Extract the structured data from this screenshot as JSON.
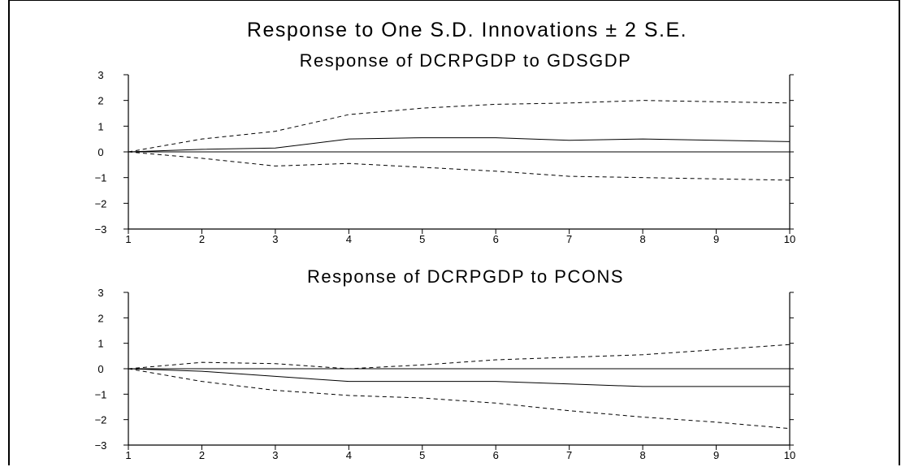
{
  "figure": {
    "title": "Response to One S.D. Innovations ± 2 S.E."
  },
  "colors": {
    "background": "#ffffff",
    "line": "#000000"
  },
  "chart_data": [
    {
      "type": "line",
      "title": "Response of DCRPGDP to GDSGDP",
      "xlabel": "",
      "ylabel": "",
      "x": [
        1,
        2,
        3,
        4,
        5,
        6,
        7,
        8,
        9,
        10
      ],
      "xlim": [
        1,
        10
      ],
      "ylim": [
        -3,
        3
      ],
      "yticks": [
        -3,
        -2,
        -1,
        0,
        1,
        2,
        3
      ],
      "xticks": [
        1,
        2,
        3,
        4,
        5,
        6,
        7,
        8,
        9,
        10
      ],
      "grid": false,
      "legend": "none",
      "zero_line": true,
      "series": [
        {
          "style": "solid",
          "values": [
            0.0,
            0.1,
            0.15,
            0.5,
            0.55,
            0.55,
            0.45,
            0.5,
            0.45,
            0.4
          ]
        },
        {
          "style": "dashed",
          "values": [
            0.0,
            0.5,
            0.8,
            1.45,
            1.7,
            1.85,
            1.9,
            2.0,
            1.95,
            1.9
          ]
        },
        {
          "style": "dashed",
          "values": [
            0.0,
            -0.25,
            -0.55,
            -0.45,
            -0.6,
            -0.75,
            -0.95,
            -1.0,
            -1.05,
            -1.1
          ]
        }
      ]
    },
    {
      "type": "line",
      "title": "Response of DCRPGDP to PCONS",
      "xlabel": "",
      "ylabel": "",
      "x": [
        1,
        2,
        3,
        4,
        5,
        6,
        7,
        8,
        9,
        10
      ],
      "xlim": [
        1,
        10
      ],
      "ylim": [
        -3,
        3
      ],
      "yticks": [
        -3,
        -2,
        -1,
        0,
        1,
        2,
        3
      ],
      "xticks": [
        1,
        2,
        3,
        4,
        5,
        6,
        7,
        8,
        9,
        10
      ],
      "grid": false,
      "legend": "none",
      "zero_line": true,
      "series": [
        {
          "style": "solid",
          "values": [
            0.0,
            -0.1,
            -0.3,
            -0.5,
            -0.5,
            -0.5,
            -0.6,
            -0.7,
            -0.7,
            -0.7
          ]
        },
        {
          "style": "dashed",
          "values": [
            0.0,
            0.25,
            0.2,
            0.0,
            0.15,
            0.35,
            0.45,
            0.55,
            0.75,
            0.95
          ]
        },
        {
          "style": "dashed",
          "values": [
            0.0,
            -0.5,
            -0.85,
            -1.05,
            -1.15,
            -1.35,
            -1.65,
            -1.9,
            -2.1,
            -2.35
          ]
        }
      ]
    }
  ]
}
